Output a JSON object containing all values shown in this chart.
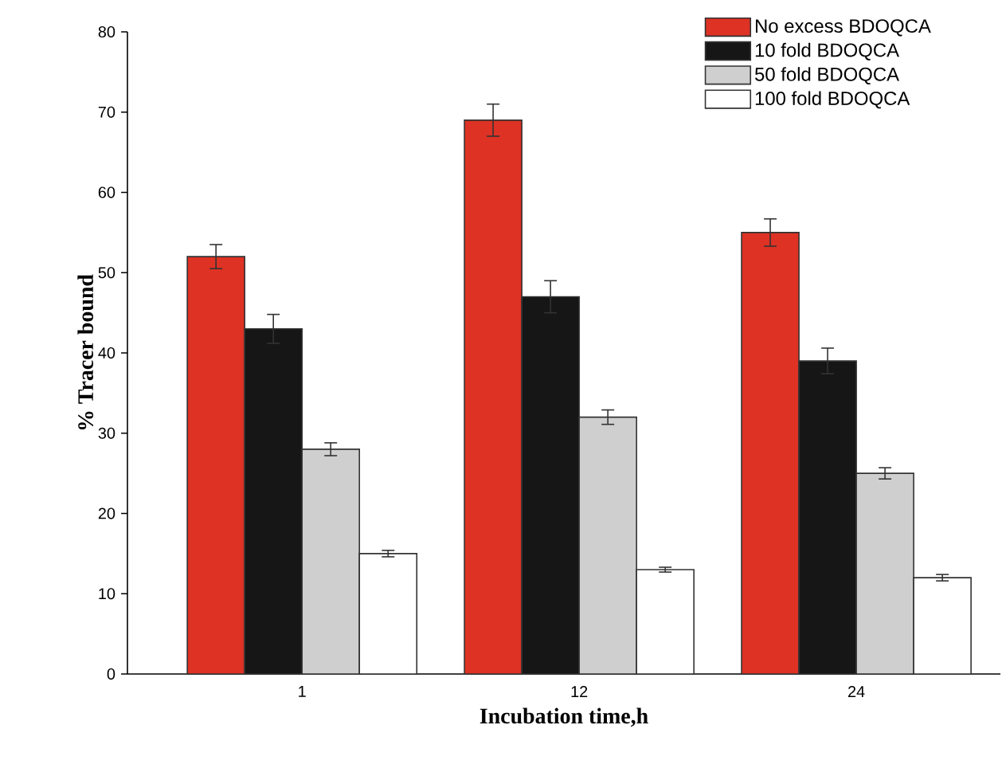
{
  "chart_data": {
    "type": "bar",
    "xlabel": "Incubation time,h",
    "ylabel": "% Tracer bound",
    "categories": [
      "1",
      "12",
      "24"
    ],
    "series": [
      {
        "name": "No excess BDOQCA",
        "color": "#dd3224",
        "values": [
          52,
          69,
          55
        ],
        "errors": [
          1.5,
          2,
          1.7
        ]
      },
      {
        "name": "10 fold BDOQCA",
        "color": "#161616",
        "values": [
          43,
          47,
          39
        ],
        "errors": [
          1.8,
          2,
          1.6
        ]
      },
      {
        "name": "50 fold BDOQCA",
        "color": "#cfcfcf",
        "values": [
          28,
          32,
          25
        ],
        "errors": [
          0.8,
          0.9,
          0.7
        ]
      },
      {
        "name": "100 fold BDOQCA",
        "color": "#ffffff",
        "values": [
          15,
          13,
          12
        ],
        "errors": [
          0.4,
          0.3,
          0.4
        ]
      }
    ],
    "ylim": [
      0,
      80
    ],
    "yticks": [
      0,
      10,
      20,
      30,
      40,
      50,
      60,
      70,
      80
    ],
    "legend": "top right",
    "grid": false
  }
}
